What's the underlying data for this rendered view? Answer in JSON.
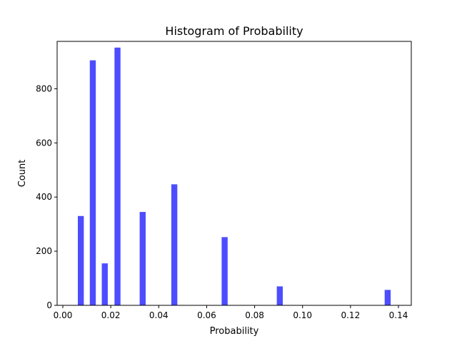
{
  "chart_data": {
    "type": "bar",
    "title": "Histogram of Probability",
    "xlabel": "Probability",
    "ylabel": "Count",
    "xlim": [
      0.0,
      0.14
    ],
    "ylim": [
      0,
      975
    ],
    "x_ticks": [
      "0.00",
      "0.02",
      "0.04",
      "0.06",
      "0.08",
      "0.10",
      "0.12",
      "0.14"
    ],
    "x_tick_values": [
      0.0,
      0.02,
      0.04,
      0.06,
      0.08,
      0.1,
      0.12,
      0.14
    ],
    "y_ticks": [
      "0",
      "200",
      "400",
      "600",
      "800"
    ],
    "y_tick_values": [
      0,
      200,
      400,
      600,
      800
    ],
    "bins": [
      {
        "x": 0.0075,
        "count": 330
      },
      {
        "x": 0.0125,
        "count": 905
      },
      {
        "x": 0.0175,
        "count": 155
      },
      {
        "x": 0.0228,
        "count": 952
      },
      {
        "x": 0.0333,
        "count": 345
      },
      {
        "x": 0.0465,
        "count": 447
      },
      {
        "x": 0.0675,
        "count": 252
      },
      {
        "x": 0.0905,
        "count": 70
      },
      {
        "x": 0.1355,
        "count": 57
      }
    ],
    "bin_width": 0.0025,
    "bar_color": "#4d4dff",
    "grid": false,
    "legend": "none"
  }
}
